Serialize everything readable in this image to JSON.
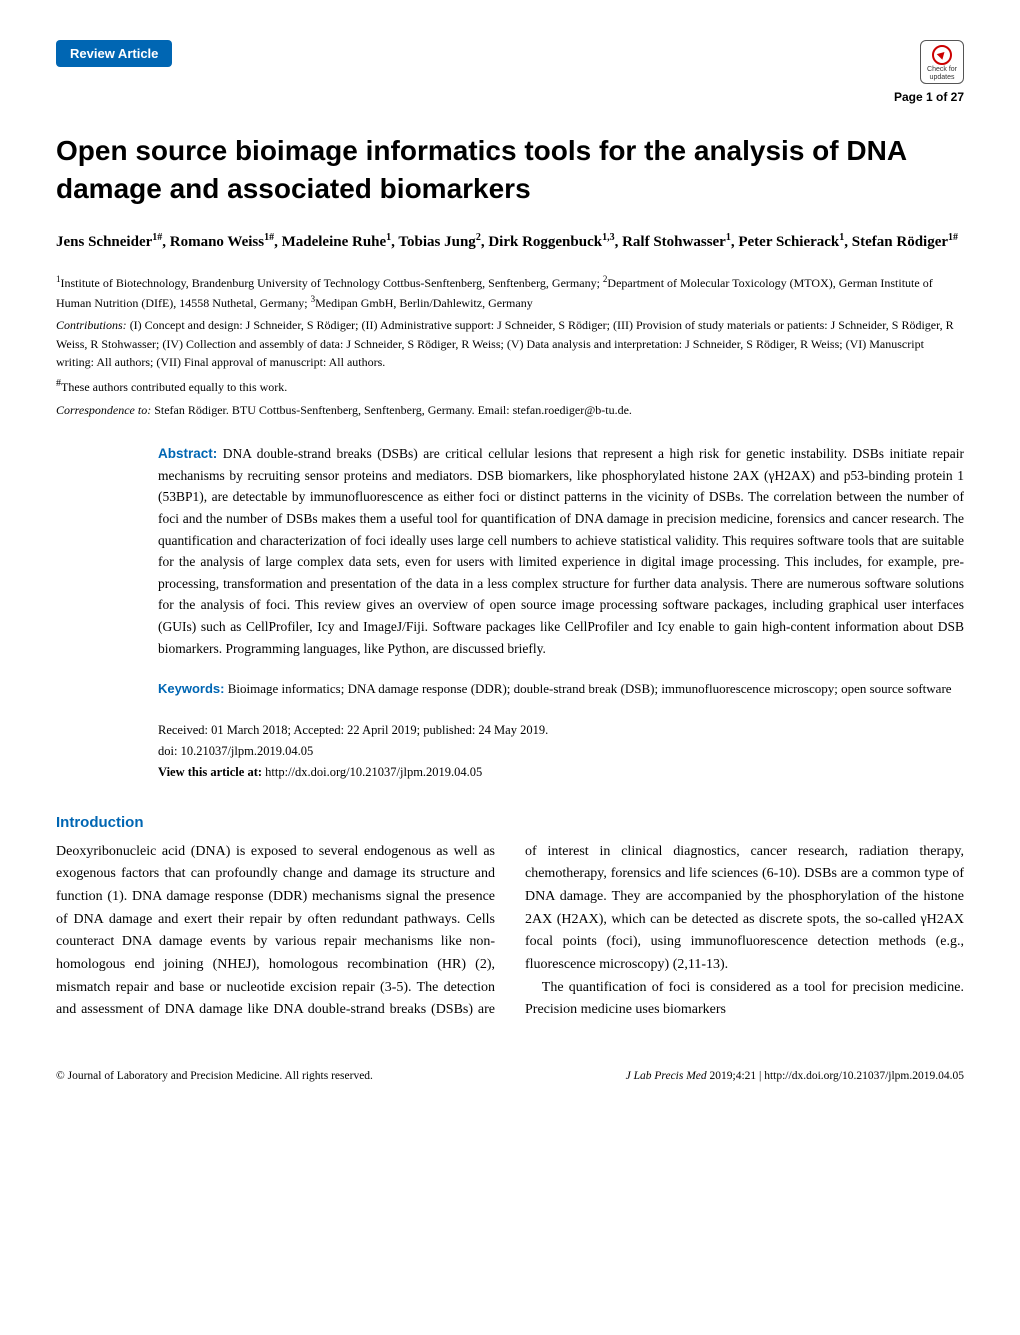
{
  "theme": {
    "accent_color": "#0066b3",
    "body_font": "Georgia, 'Times New Roman', serif",
    "heading_font": "Arial, Helvetica, sans-serif",
    "background": "#ffffff",
    "text_color": "#000000"
  },
  "header": {
    "badge": "Review Article",
    "updates_line1": "Check for",
    "updates_line2": "updates",
    "page_number": "Page 1 of 27"
  },
  "title": "Open source bioimage informatics tools for the analysis of DNA damage and associated biomarkers",
  "authors_html": "Jens Schneider<sup>1#</sup>, Romano Weiss<sup>1#</sup>, Madeleine Ruhe<sup>1</sup>, Tobias Jung<sup>2</sup>, Dirk Roggenbuck<sup>1,3</sup>, Ralf Stohwasser<sup>1</sup>, Peter Schierack<sup>1</sup>, Stefan Rödiger<sup>1#</sup>",
  "affiliations_html": "<sup>1</sup>Institute of Biotechnology, Brandenburg University of Technology Cottbus-Senftenberg, Senftenberg, Germany; <sup>2</sup>Department of Molecular Toxicology (MTOX), German Institute of Human Nutrition (DIfE), 14558 Nuthetal, Germany; <sup>3</sup>Medipan GmbH, Berlin/Dahlewitz, Germany",
  "contributions_html": "<i>Contributions:</i> (I) Concept and design: J Schneider, S Rödiger; (II) Administrative support: J Schneider, S Rödiger; (III) Provision of study materials or patients: J Schneider, S Rödiger, R Weiss, R Stohwasser; (IV) Collection and assembly of data: J Schneider, S Rödiger, R Weiss; (V) Data analysis and interpretation: J Schneider, S Rödiger, R Weiss; (VI) Manuscript writing: All authors; (VII) Final approval of manuscript: All authors.",
  "equal_html": "<sup>#</sup>These authors contributed equally to this work.",
  "correspondence_html": "Correspondence to: <span class='nonital'>Stefan Rödiger. BTU Cottbus-Senftenberg, Senftenberg, Germany. Email: stefan.roediger@b-tu.de.</span>",
  "abstract_label": "Abstract:",
  "abstract_text": " DNA double-strand breaks (DSBs) are critical cellular lesions that represent a high risk for genetic instability. DSBs initiate repair mechanisms by recruiting sensor proteins and mediators. DSB biomarkers, like phosphorylated histone 2AX (γH2AX) and p53-binding protein 1 (53BP1), are detectable by immunofluorescence as either foci or distinct patterns in the vicinity of DSBs. The correlation between the number of foci and the number of DSBs makes them a useful tool for quantification of DNA damage in precision medicine, forensics and cancer research. The quantification and characterization of foci ideally uses large cell numbers to achieve statistical validity. This requires software tools that are suitable for the analysis of large complex data sets, even for users with limited experience in digital image processing. This includes, for example, pre-processing, transformation and presentation of the data in a less complex structure for further data analysis. There are numerous software solutions for the analysis of foci. This review gives an overview of open source image processing software packages, including graphical user interfaces (GUIs) such as CellProfiler, Icy and ImageJ/Fiji. Software packages like CellProfiler and Icy enable to gain high-content information about DSB biomarkers. Programming languages, like Python, are discussed briefly.",
  "keywords_label": "Keywords:",
  "keywords_text": " Bioimage informatics; DNA damage response (DDR); double-strand break (DSB); immunofluorescence microscopy; open source software",
  "meta": {
    "received": "Received: 01 March 2018; Accepted: 22 April 2019; published: 24 May 2019.",
    "doi": "doi: 10.21037/jlpm.2019.04.05",
    "view_label": "View this article at:",
    "view_url": " http://dx.doi.org/10.21037/jlpm.2019.04.05"
  },
  "introduction_heading": "Introduction",
  "intro_para1": "Deoxyribonucleic acid (DNA) is exposed to several endogenous as well as exogenous factors that can profoundly change and damage its structure and function (1). DNA damage response (DDR) mechanisms signal the presence of DNA damage and exert their repair by often redundant pathways. Cells counteract DNA damage events by various repair mechanisms like non-homologous end joining (NHEJ), homologous recombination (HR) (2), mismatch repair and base or nucleotide excision repair (3-5). The detection and assessment of DNA damage like DNA double-strand breaks (DSBs) are of interest in clinical diagnostics, cancer research, radiation therapy, chemotherapy, forensics and life sciences (6-10). DSBs are a common type of DNA damage. They are accompanied by the phosphorylation of the histone 2AX (H2AX), which can be detected as discrete spots, the so-called γH2AX focal points (foci), using immunofluorescence detection methods (e.g., fluorescence microscopy) (2,11-13).",
  "intro_para2": "The quantification of foci is considered as a tool for precision medicine. Precision medicine uses biomarkers",
  "footer": {
    "left": "© Journal of Laboratory and Precision Medicine. All rights reserved.",
    "right_html": "<em>J Lab Precis Med</em> 2019;4:21 | http://dx.doi.org/10.21037/jlpm.2019.04.05"
  }
}
